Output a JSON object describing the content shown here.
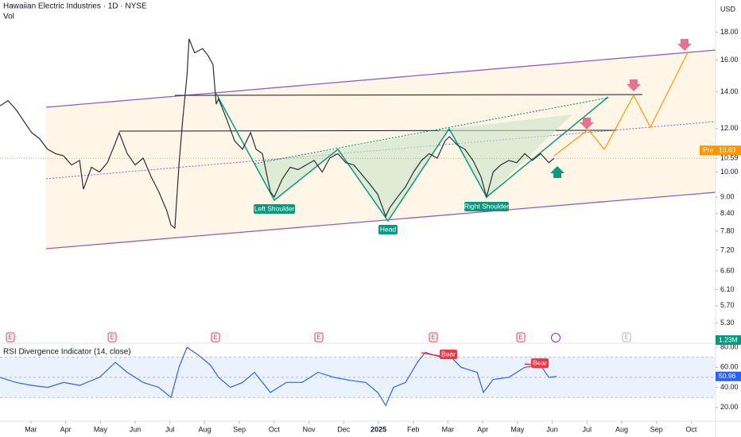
{
  "chart_data": [
    {
      "type": "line",
      "title": "Hawaiian Electric Industries · 1D · NYSE",
      "volume_label": "Vol",
      "currency": "USD",
      "log": true,
      "grid": false,
      "xlim": [
        -0.89,
        19.7
      ],
      "xticks": [
        {
          "value": 0,
          "label": "Mar"
        },
        {
          "value": 1,
          "label": "Apr"
        },
        {
          "value": 2,
          "label": "May"
        },
        {
          "value": 3,
          "label": "Jun"
        },
        {
          "value": 4,
          "label": "Jul"
        },
        {
          "value": 5,
          "label": "Aug"
        },
        {
          "value": 6,
          "label": "Sep"
        },
        {
          "value": 7,
          "label": "Oct"
        },
        {
          "value": 8,
          "label": "Nov"
        },
        {
          "value": 9,
          "label": "Dec"
        },
        {
          "value": 10,
          "label": "2025"
        },
        {
          "value": 11,
          "label": "Feb"
        },
        {
          "value": 12,
          "label": "Mar"
        },
        {
          "value": 13,
          "label": "Apr"
        },
        {
          "value": 14,
          "label": "May"
        },
        {
          "value": 15,
          "label": "Jun"
        },
        {
          "value": 16,
          "label": "Jul"
        },
        {
          "value": 17,
          "label": "Aug"
        },
        {
          "value": 18,
          "label": "Sep"
        },
        {
          "value": 19,
          "label": "Oct"
        }
      ],
      "ylim": [
        4.87,
        20.6
      ],
      "yticks": [
        {
          "value": 18,
          "label": "18.00"
        },
        {
          "value": 16,
          "label": "16.00"
        },
        {
          "value": 14,
          "label": "14.00"
        },
        {
          "value": 12,
          "label": "12.00"
        },
        10.59,
        {
          "value": 10,
          "label": "10.00"
        },
        {
          "value": 9,
          "label": "9.00"
        },
        {
          "value": 8.4,
          "label": "8.40"
        },
        {
          "value": 7.8,
          "label": "7.80"
        },
        {
          "value": 7.2,
          "label": "7.20"
        },
        {
          "value": 6.6,
          "label": "6.60"
        },
        {
          "value": 6.1,
          "label": "6.10"
        },
        {
          "value": 5.7,
          "label": "5.70"
        },
        {
          "value": 5.3,
          "label": "5.30"
        }
      ],
      "pre_market": {
        "label": "Pre",
        "value": 10.63
      },
      "volume_last": {
        "value": 1230000,
        "label": "1.23M"
      },
      "event_marker": "E",
      "annotations": [
        "Left Shoulder",
        "Head",
        "Right Shoulder"
      ],
      "series": [
        {
          "color": "#2a2e39",
          "x": [
            -0.89,
            -0.66,
            -0.43,
            0.02,
            0.25,
            0.48,
            0.71,
            0.94,
            1.17,
            1.4,
            1.51,
            1.74,
            1.97,
            2.2,
            2.43,
            2.54,
            2.77,
            3.0,
            3.23,
            3.46,
            3.68,
            3.91,
            4.03,
            4.14,
            4.26,
            4.37,
            4.49,
            4.55,
            4.71,
            4.94,
            5.1,
            5.24,
            5.33,
            5.4,
            5.63,
            5.86,
            6.09,
            6.32,
            6.48,
            6.66,
            6.89,
            7.0,
            7.23,
            7.46,
            7.69,
            7.92,
            8.15,
            8.38,
            8.6,
            8.83,
            9.06,
            9.29,
            9.52,
            9.75,
            9.98,
            10.21,
            10.32,
            10.55,
            10.78,
            11.01,
            11.24,
            11.46,
            11.69,
            11.92,
            12.04,
            12.27,
            12.49,
            12.72,
            12.95,
            13.11,
            13.3,
            13.52,
            13.75,
            13.98,
            14.21,
            14.43,
            14.67,
            14.9,
            15.06
          ],
          "values": [
            13.2,
            13.5,
            13.0,
            11.8,
            11.5,
            11.0,
            10.8,
            10.7,
            10.3,
            10.5,
            9.3,
            10.2,
            10.0,
            10.4,
            11.3,
            11.8,
            10.8,
            10.3,
            10.6,
            9.8,
            9.2,
            8.5,
            8.0,
            7.9,
            10.3,
            12.5,
            15.0,
            17.5,
            16.5,
            16.8,
            16.3,
            15.7,
            13.3,
            13.6,
            12.5,
            11.4,
            11.0,
            11.8,
            11.0,
            10.8,
            9.2,
            9.0,
            9.7,
            10.2,
            10.1,
            10.3,
            10.5,
            10.0,
            10.6,
            10.8,
            10.4,
            10.3,
            9.9,
            9.5,
            9.1,
            8.3,
            8.6,
            9.0,
            9.4,
            10.0,
            10.5,
            10.8,
            10.6,
            11.4,
            11.6,
            11.2,
            11.0,
            10.5,
            9.8,
            9.0,
            10.0,
            10.3,
            10.5,
            10.4,
            10.8,
            10.5,
            10.8,
            10.4,
            10.6
          ]
        }
      ]
    },
    {
      "type": "line",
      "title": "RSI Divergence Indicator (14, close)",
      "xlim": [
        -0.89,
        19.7
      ],
      "ylim": [
        6.4,
        84
      ],
      "yticks": [
        {
          "value": 80,
          "label": "80.00"
        },
        {
          "value": 60,
          "label": "60.00"
        },
        {
          "value": 40,
          "label": "40.00"
        },
        {
          "value": 20,
          "label": "20.00"
        }
      ],
      "levels": [
        70,
        50,
        30
      ],
      "last_value": {
        "value": 50.96,
        "label": "50.96"
      },
      "annotations": [
        "Bear",
        "Bear"
      ],
      "series": [
        {
          "color": "#2962ff",
          "x": [
            -0.89,
            -0.43,
            0.02,
            0.48,
            0.94,
            1.4,
            1.97,
            2.43,
            2.77,
            3.23,
            3.68,
            4.03,
            4.26,
            4.49,
            4.83,
            5.17,
            5.4,
            5.74,
            6.09,
            6.43,
            6.89,
            7.35,
            7.8,
            8.26,
            8.72,
            9.18,
            9.63,
            9.98,
            10.21,
            10.43,
            10.78,
            11.12,
            11.35,
            11.81,
            12.04,
            12.38,
            12.84,
            13.02,
            13.3,
            13.75,
            14.21,
            14.67,
            14.9,
            15.13
          ],
          "values": [
            50,
            45,
            42,
            40,
            45,
            42,
            50,
            65,
            55,
            45,
            40,
            30,
            60,
            80,
            72,
            62,
            50,
            40,
            45,
            55,
            35,
            45,
            45,
            55,
            50,
            47,
            45,
            35,
            22,
            40,
            45,
            65,
            75,
            70,
            72,
            60,
            55,
            35,
            48,
            50,
            60,
            62,
            50,
            51
          ]
        }
      ]
    }
  ]
}
